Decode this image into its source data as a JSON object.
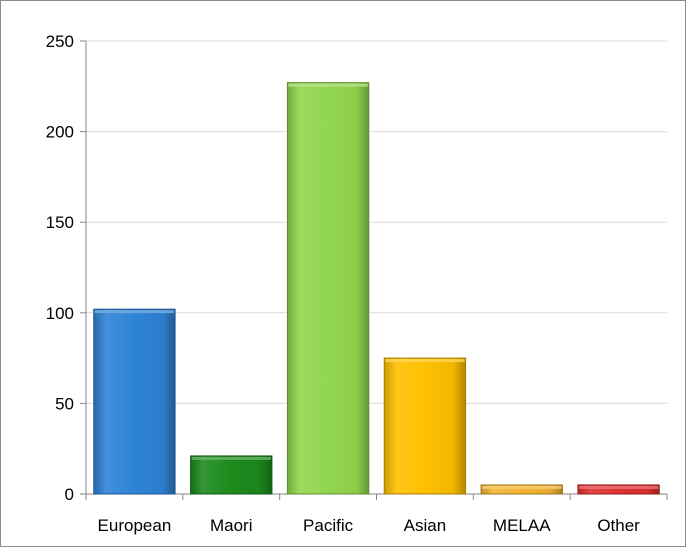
{
  "chart_data": {
    "type": "bar",
    "categories": [
      "European",
      "Maori",
      "Pacific",
      "Asian",
      "MELAA",
      "Other"
    ],
    "values": [
      102,
      21,
      227,
      75,
      5,
      5
    ],
    "colors": [
      "#2e83d6",
      "#1c8a1c",
      "#92d64e",
      "#ffc000",
      "#f2b430",
      "#e03030"
    ],
    "ylim": [
      0,
      250
    ],
    "yticks": [
      0,
      50,
      100,
      150,
      200,
      250
    ],
    "grid": true,
    "legend": "none",
    "title": "",
    "xlabel": "",
    "ylabel": ""
  }
}
